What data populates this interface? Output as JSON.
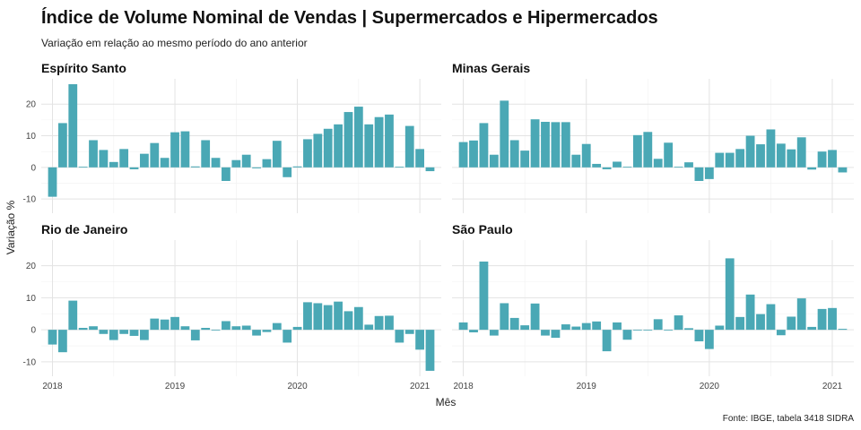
{
  "chart_data": {
    "type": "bar",
    "title": "Índice de Volume Nominal de Vendas | Supermercados e Hipermercados",
    "subtitle": "Variação em relação ao mesmo período do ano anterior",
    "xlabel": "Mês",
    "ylabel": "Variação %",
    "caption": "Fonte: IBGE, tabela 3418 SIDRA",
    "bar_color": "#4aa8b5",
    "ylim": [
      -14.5,
      28
    ],
    "yticks": [
      -10,
      0,
      10,
      20
    ],
    "x_start": "2018-01",
    "x_ticks": [
      "2018",
      "2019",
      "2020",
      "2021"
    ],
    "grid": true,
    "panels": [
      {
        "name": "Espírito Santo",
        "values": [
          -9.3,
          14.0,
          26.3,
          0.2,
          8.6,
          5.5,
          1.7,
          5.8,
          -0.6,
          4.3,
          7.7,
          3.0,
          11.1,
          11.4,
          0.3,
          8.6,
          3.0,
          -4.3,
          2.3,
          4.0,
          -0.3,
          2.6,
          8.4,
          -3.1,
          0.3,
          8.9,
          10.6,
          12.2,
          13.6,
          17.5,
          19.2,
          13.6,
          15.9,
          16.7,
          0.2,
          13.1,
          5.8,
          -1.2
        ]
      },
      {
        "name": "Minas Gerais",
        "values": [
          8.0,
          8.5,
          14.0,
          4.0,
          21.1,
          8.6,
          5.3,
          15.2,
          14.4,
          14.3,
          14.3,
          4.0,
          7.4,
          1.1,
          -0.6,
          1.8,
          0.2,
          10.2,
          11.2,
          2.7,
          7.8,
          0.2,
          1.6,
          -4.3,
          -3.7,
          4.6,
          4.6,
          5.8,
          10.0,
          7.3,
          12.0,
          7.5,
          5.7,
          9.5,
          -0.7,
          5.0,
          5.5,
          -1.6
        ]
      },
      {
        "name": "Rio de Janeiro",
        "values": [
          -4.6,
          -7.0,
          9.1,
          0.6,
          1.1,
          -1.3,
          -3.2,
          -1.3,
          -1.9,
          -3.2,
          3.5,
          3.2,
          4.0,
          1.1,
          -3.3,
          0.6,
          -0.2,
          2.7,
          1.1,
          1.3,
          -1.8,
          -0.7,
          2.1,
          -4.0,
          0.9,
          8.6,
          8.3,
          7.7,
          8.8,
          5.8,
          7.1,
          1.6,
          4.3,
          4.4,
          -4.0,
          -1.3,
          -6.2,
          -12.8
        ]
      },
      {
        "name": "São Paulo",
        "values": [
          2.3,
          -0.8,
          21.3,
          -1.8,
          8.3,
          3.7,
          1.4,
          8.2,
          -1.8,
          -2.5,
          1.7,
          1.0,
          2.1,
          2.6,
          -6.7,
          2.3,
          -3.1,
          -0.2,
          -0.2,
          3.3,
          -0.2,
          4.5,
          0.5,
          -3.6,
          -6.0,
          1.3,
          22.3,
          4.0,
          11.0,
          4.9,
          8.0,
          -1.7,
          4.1,
          9.8,
          0.9,
          6.5,
          6.8,
          0.3
        ]
      }
    ]
  }
}
